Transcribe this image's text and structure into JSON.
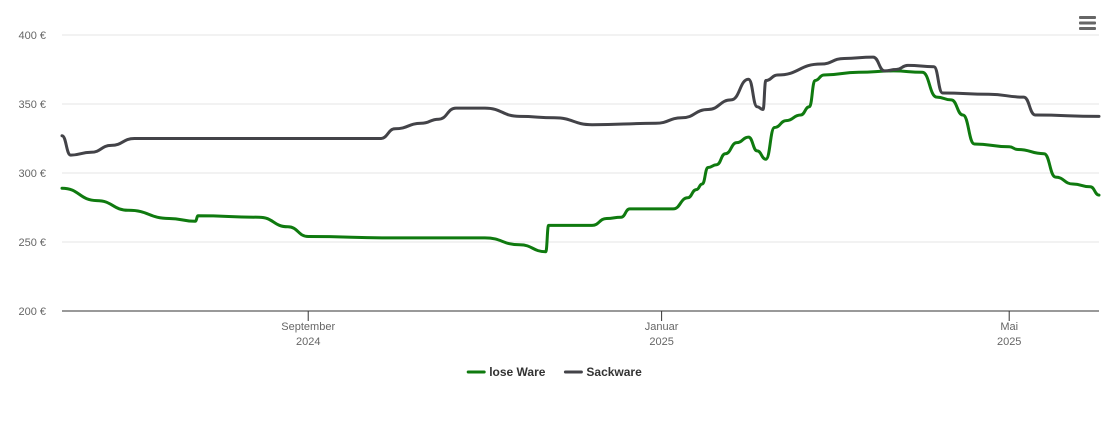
{
  "chart_data": {
    "type": "line",
    "y_ticks": [
      "200 €",
      "250 €",
      "300 €",
      "350 €",
      "400 €"
    ],
    "ylim": [
      200,
      400
    ],
    "x_ticks": [
      {
        "date": "2024-09-01",
        "line1": "September",
        "line2": "2024"
      },
      {
        "date": "2025-01-01",
        "line1": "Januar",
        "line2": "2025"
      },
      {
        "date": "2025-05-01",
        "line1": "Mai",
        "line2": "2025"
      }
    ],
    "xlim": [
      "2024-06-08",
      "2025-06-01"
    ],
    "grid": "horizontal",
    "legend_position": "bottom-center",
    "series": [
      {
        "name": "lose Ware",
        "color": "#0f7a0f",
        "points": [
          [
            "2024-06-08",
            289
          ],
          [
            "2024-06-20",
            280
          ],
          [
            "2024-07-01",
            273
          ],
          [
            "2024-07-15",
            267
          ],
          [
            "2024-07-24",
            265
          ],
          [
            "2024-07-25",
            269
          ],
          [
            "2024-08-15",
            268
          ],
          [
            "2024-08-25",
            261
          ],
          [
            "2024-09-01",
            254
          ],
          [
            "2024-10-01",
            253
          ],
          [
            "2024-11-01",
            253
          ],
          [
            "2024-11-13",
            248
          ],
          [
            "2024-11-22",
            243
          ],
          [
            "2024-11-23",
            262
          ],
          [
            "2024-12-01",
            262
          ],
          [
            "2024-12-08",
            262
          ],
          [
            "2024-12-13",
            267
          ],
          [
            "2024-12-18",
            268
          ],
          [
            "2024-12-21",
            274
          ],
          [
            "2025-01-05",
            274
          ],
          [
            "2025-01-10",
            282
          ],
          [
            "2025-01-13",
            288
          ],
          [
            "2025-01-15",
            292
          ],
          [
            "2025-01-17",
            304
          ],
          [
            "2025-01-20",
            306
          ],
          [
            "2025-01-23",
            314
          ],
          [
            "2025-01-27",
            322
          ],
          [
            "2025-01-31",
            326
          ],
          [
            "2025-02-03",
            316
          ],
          [
            "2025-02-06",
            310
          ],
          [
            "2025-02-09",
            333
          ],
          [
            "2025-02-13",
            338
          ],
          [
            "2025-02-18",
            342
          ],
          [
            "2025-02-21",
            348
          ],
          [
            "2025-02-23",
            367
          ],
          [
            "2025-02-26",
            371
          ],
          [
            "2025-03-10",
            373
          ],
          [
            "2025-03-22",
            374
          ],
          [
            "2025-04-01",
            373
          ],
          [
            "2025-04-06",
            355
          ],
          [
            "2025-04-11",
            353
          ],
          [
            "2025-04-15",
            342
          ],
          [
            "2025-04-19",
            321
          ],
          [
            "2025-05-01",
            319
          ],
          [
            "2025-05-04",
            317
          ],
          [
            "2025-05-13",
            314
          ],
          [
            "2025-05-17",
            297
          ],
          [
            "2025-05-23",
            292
          ],
          [
            "2025-05-29",
            290
          ],
          [
            "2025-06-01",
            284
          ]
        ]
      },
      {
        "name": "Sackware",
        "color": "#434348",
        "points": [
          [
            "2024-06-08",
            327
          ],
          [
            "2024-06-11",
            313
          ],
          [
            "2024-06-18",
            315
          ],
          [
            "2024-06-25",
            320
          ],
          [
            "2024-07-03",
            325
          ],
          [
            "2024-08-01",
            325
          ],
          [
            "2024-09-01",
            325
          ],
          [
            "2024-09-26",
            325
          ],
          [
            "2024-10-01",
            332
          ],
          [
            "2024-10-10",
            336
          ],
          [
            "2024-10-16",
            339
          ],
          [
            "2024-10-22",
            347
          ],
          [
            "2024-11-01",
            347
          ],
          [
            "2024-11-13",
            341
          ],
          [
            "2024-11-25",
            340
          ],
          [
            "2024-12-08",
            335
          ],
          [
            "2024-12-30",
            336
          ],
          [
            "2025-01-08",
            340
          ],
          [
            "2025-01-17",
            346
          ],
          [
            "2025-01-25",
            353
          ],
          [
            "2025-01-31",
            368
          ],
          [
            "2025-02-03",
            348
          ],
          [
            "2025-02-05",
            346
          ],
          [
            "2025-02-06",
            367
          ],
          [
            "2025-02-10",
            371
          ],
          [
            "2025-02-25",
            379
          ],
          [
            "2025-03-05",
            383
          ],
          [
            "2025-03-15",
            384
          ],
          [
            "2025-03-19",
            374
          ],
          [
            "2025-03-23",
            375
          ],
          [
            "2025-03-27",
            378
          ],
          [
            "2025-04-05",
            377
          ],
          [
            "2025-04-08",
            358
          ],
          [
            "2025-04-24",
            357
          ],
          [
            "2025-05-06",
            355
          ],
          [
            "2025-05-10",
            342
          ],
          [
            "2025-06-01",
            341
          ]
        ]
      }
    ]
  }
}
